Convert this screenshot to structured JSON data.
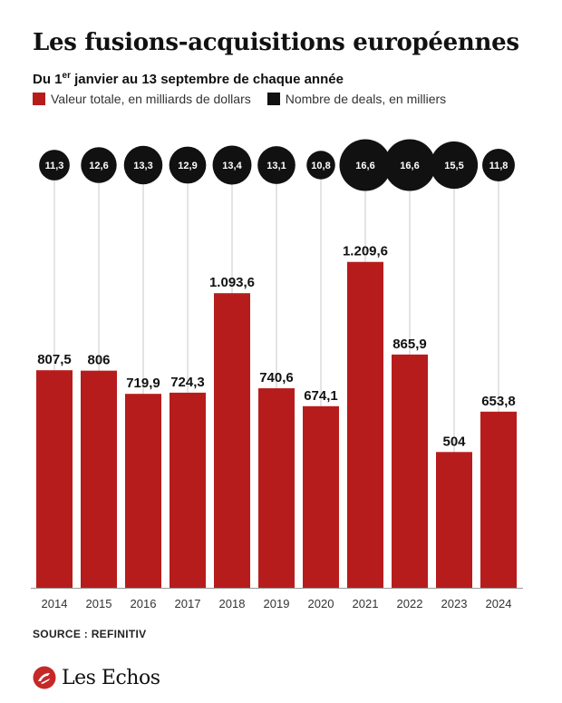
{
  "title": "Les fusions-acquisitions européennes",
  "subtitle_pre": "Du 1",
  "subtitle_sup": "er",
  "subtitle_post": " janvier au 13 septembre de chaque année",
  "legend": [
    {
      "label": "Valeur totale, en milliards de dollars",
      "color": "#b71c1c"
    },
    {
      "label": "Nombre de deals, en milliers",
      "color": "#111111"
    }
  ],
  "source": "SOURCE : REFINITIV",
  "brand": "Les Echos",
  "chart_data": {
    "type": "bar",
    "categories": [
      "2014",
      "2015",
      "2016",
      "2017",
      "2018",
      "2019",
      "2020",
      "2021",
      "2022",
      "2023",
      "2024"
    ],
    "series": [
      {
        "name": "Valeur totale, en milliards de dollars",
        "values": [
          807.5,
          806,
          719.9,
          724.3,
          1093.6,
          740.6,
          674.1,
          1209.6,
          865.9,
          504,
          653.8
        ],
        "labels": [
          "807,5",
          "806",
          "719,9",
          "724,3",
          "1.093,6",
          "740,6",
          "674,1",
          "1.209,6",
          "865,9",
          "504",
          "653,8"
        ],
        "color": "#b71c1c"
      },
      {
        "name": "Nombre de deals, en milliers",
        "values": [
          11.3,
          12.6,
          13.3,
          12.9,
          13.4,
          13.1,
          10.8,
          16.6,
          16.6,
          15.5,
          11.8
        ],
        "labels": [
          "11,3",
          "12,6",
          "13,3",
          "12,9",
          "13,4",
          "13,1",
          "10,8",
          "16,6",
          "16,6",
          "15,5",
          "11,8"
        ],
        "color": "#111111"
      }
    ],
    "ylim": [
      0,
      1300
    ]
  }
}
